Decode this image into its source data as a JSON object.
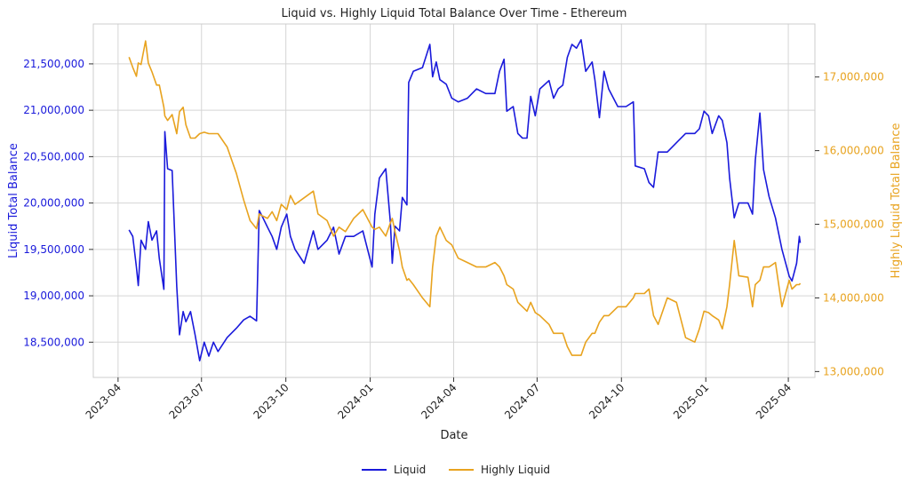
{
  "chart_data": {
    "type": "line",
    "title": "Liquid vs. Highly Liquid Total Balance Over Time - Ethereum",
    "xlabel": "Date",
    "ylabel_left": "Liquid Total Balance",
    "ylabel_right": "Highly Liquid Total Balance",
    "grid": true,
    "legend_placement": "bottom-center",
    "x_ticks": [
      "2023-04",
      "2023-07",
      "2023-10",
      "2024-01",
      "2024-04",
      "2024-07",
      "2024-10",
      "2025-01",
      "2025-04"
    ],
    "xlim": [
      "2023-03-05",
      "2025-04-30"
    ],
    "y_left": {
      "ticks": [
        18500000,
        19000000,
        19500000,
        20000000,
        20500000,
        21000000,
        21500000
      ],
      "tick_labels": [
        "18,500,000",
        "19,000,000",
        "19,500,000",
        "20,000,000",
        "20,500,000",
        "21,000,000",
        "21,500,000"
      ],
      "ylim": [
        18120000,
        21930000
      ],
      "color": "#1a1adb"
    },
    "y_right": {
      "ticks": [
        13000000,
        14000000,
        15000000,
        16000000,
        17000000
      ],
      "tick_labels": [
        "13,000,000",
        "14,000,000",
        "15,000,000",
        "16,000,000",
        "17,000,000"
      ],
      "ylim": [
        12920000,
        17720000
      ],
      "color": "#e8a31f"
    },
    "x": [
      "2023-04-13",
      "2023-04-17",
      "2023-04-21",
      "2023-04-23",
      "2023-04-26",
      "2023-05-01",
      "2023-05-04",
      "2023-05-08",
      "2023-05-13",
      "2023-05-16",
      "2023-05-21",
      "2023-05-22",
      "2023-05-25",
      "2023-05-30",
      "2023-06-04",
      "2023-06-07",
      "2023-06-11",
      "2023-06-14",
      "2023-06-19",
      "2023-06-24",
      "2023-06-29",
      "2023-07-04",
      "2023-07-09",
      "2023-07-14",
      "2023-07-19",
      "2023-07-29",
      "2023-08-08",
      "2023-08-16",
      "2023-08-23",
      "2023-08-30",
      "2023-09-02",
      "2023-09-06",
      "2023-09-11",
      "2023-09-16",
      "2023-09-21",
      "2023-09-26",
      "2023-10-02",
      "2023-10-06",
      "2023-10-11",
      "2023-10-21",
      "2023-10-31",
      "2023-11-05",
      "2023-11-15",
      "2023-11-22",
      "2023-11-28",
      "2023-12-05",
      "2023-12-14",
      "2023-12-24",
      "2024-01-03",
      "2024-01-06",
      "2024-01-11",
      "2024-01-18",
      "2024-01-23",
      "2024-01-25",
      "2024-01-28",
      "2024-02-02",
      "2024-02-05",
      "2024-02-10",
      "2024-02-12",
      "2024-02-17",
      "2024-02-27",
      "2024-03-06",
      "2024-03-09",
      "2024-03-13",
      "2024-03-17",
      "2024-03-24",
      "2024-03-30",
      "2024-04-06",
      "2024-04-16",
      "2024-04-26",
      "2024-05-06",
      "2024-05-16",
      "2024-05-21",
      "2024-05-26",
      "2024-05-29",
      "2024-06-05",
      "2024-06-10",
      "2024-06-15",
      "2024-06-20",
      "2024-06-24",
      "2024-06-29",
      "2024-07-04",
      "2024-07-14",
      "2024-07-19",
      "2024-07-24",
      "2024-07-29",
      "2024-08-03",
      "2024-08-08",
      "2024-08-13",
      "2024-08-18",
      "2024-08-23",
      "2024-08-30",
      "2024-09-02",
      "2024-09-07",
      "2024-09-12",
      "2024-09-17",
      "2024-09-27",
      "2024-10-06",
      "2024-10-14",
      "2024-10-16",
      "2024-10-26",
      "2024-10-31",
      "2024-11-05",
      "2024-11-10",
      "2024-11-20",
      "2024-11-30",
      "2024-12-10",
      "2024-12-20",
      "2024-12-25",
      "2024-12-30",
      "2025-01-04",
      "2025-01-08",
      "2025-01-15",
      "2025-01-19",
      "2025-01-24",
      "2025-01-27",
      "2025-02-01",
      "2025-02-06",
      "2025-02-16",
      "2025-02-21",
      "2025-02-24",
      "2025-03-01",
      "2025-03-05",
      "2025-03-11",
      "2025-03-18",
      "2025-03-25",
      "2025-04-02",
      "2025-04-05",
      "2025-04-10",
      "2025-04-13",
      "2025-04-14"
    ],
    "series": [
      {
        "name": "Liquid",
        "color": "#1a1adb",
        "axis": "left",
        "values": [
          19710000,
          19640000,
          19310000,
          19110000,
          19600000,
          19500000,
          19800000,
          19600000,
          19700000,
          19400000,
          19070000,
          20770000,
          20370000,
          20350000,
          19100000,
          18580000,
          18830000,
          18720000,
          18830000,
          18580000,
          18300000,
          18500000,
          18350000,
          18500000,
          18400000,
          18550000,
          18650000,
          18740000,
          18780000,
          18730000,
          19920000,
          19840000,
          19740000,
          19640000,
          19500000,
          19740000,
          19880000,
          19640000,
          19500000,
          19350000,
          19700000,
          19500000,
          19600000,
          19740000,
          19450000,
          19640000,
          19640000,
          19700000,
          19310000,
          19880000,
          20270000,
          20370000,
          19790000,
          19350000,
          19750000,
          19700000,
          20060000,
          19980000,
          21300000,
          21420000,
          21460000,
          21710000,
          21360000,
          21520000,
          21330000,
          21280000,
          21130000,
          21090000,
          21130000,
          21230000,
          21180000,
          21180000,
          21420000,
          21550000,
          20990000,
          21040000,
          20750000,
          20700000,
          20700000,
          21150000,
          20940000,
          21230000,
          21320000,
          21130000,
          21230000,
          21270000,
          21570000,
          21710000,
          21670000,
          21760000,
          21420000,
          21520000,
          21330000,
          20920000,
          21420000,
          21230000,
          21040000,
          21040000,
          21090000,
          20400000,
          20370000,
          20220000,
          20170000,
          20550000,
          20550000,
          20650000,
          20750000,
          20750000,
          20800000,
          20990000,
          20940000,
          20750000,
          20940000,
          20890000,
          20650000,
          20270000,
          19840000,
          20000000,
          20000000,
          19880000,
          20460000,
          20970000,
          20360000,
          20070000,
          19840000,
          19500000,
          19210000,
          19160000,
          19350000,
          19640000,
          19570000
        ]
      },
      {
        "name": "Highly Liquid",
        "color": "#e8a31f",
        "axis": "right",
        "values": [
          17270000,
          17130000,
          17010000,
          17190000,
          17170000,
          17490000,
          17190000,
          17070000,
          16890000,
          16890000,
          16590000,
          16470000,
          16410000,
          16490000,
          16230000,
          16530000,
          16590000,
          16350000,
          16170000,
          16170000,
          16230000,
          16250000,
          16230000,
          16230000,
          16230000,
          16050000,
          15690000,
          15330000,
          15050000,
          14940000,
          15140000,
          15110000,
          15080000,
          15170000,
          15050000,
          15270000,
          15200000,
          15390000,
          15270000,
          15360000,
          15450000,
          15140000,
          15050000,
          14840000,
          14960000,
          14900000,
          15080000,
          15200000,
          14960000,
          14930000,
          14960000,
          14840000,
          15020000,
          15080000,
          14900000,
          14640000,
          14420000,
          14240000,
          14260000,
          14180000,
          14000000,
          13880000,
          14420000,
          14840000,
          14960000,
          14780000,
          14720000,
          14540000,
          14480000,
          14420000,
          14420000,
          14480000,
          14420000,
          14300000,
          14180000,
          14120000,
          13940000,
          13880000,
          13820000,
          13940000,
          13800000,
          13760000,
          13640000,
          13520000,
          13520000,
          13520000,
          13340000,
          13220000,
          13220000,
          13220000,
          13400000,
          13520000,
          13520000,
          13670000,
          13760000,
          13760000,
          13880000,
          13880000,
          14000000,
          14060000,
          14060000,
          14120000,
          13760000,
          13640000,
          14000000,
          13940000,
          13460000,
          13400000,
          13580000,
          13820000,
          13800000,
          13760000,
          13700000,
          13580000,
          13880000,
          14180000,
          14780000,
          14300000,
          14280000,
          13880000,
          14180000,
          14240000,
          14420000,
          14420000,
          14480000,
          13880000,
          14240000,
          14120000,
          14180000,
          14180000,
          14200000
        ]
      }
    ]
  }
}
